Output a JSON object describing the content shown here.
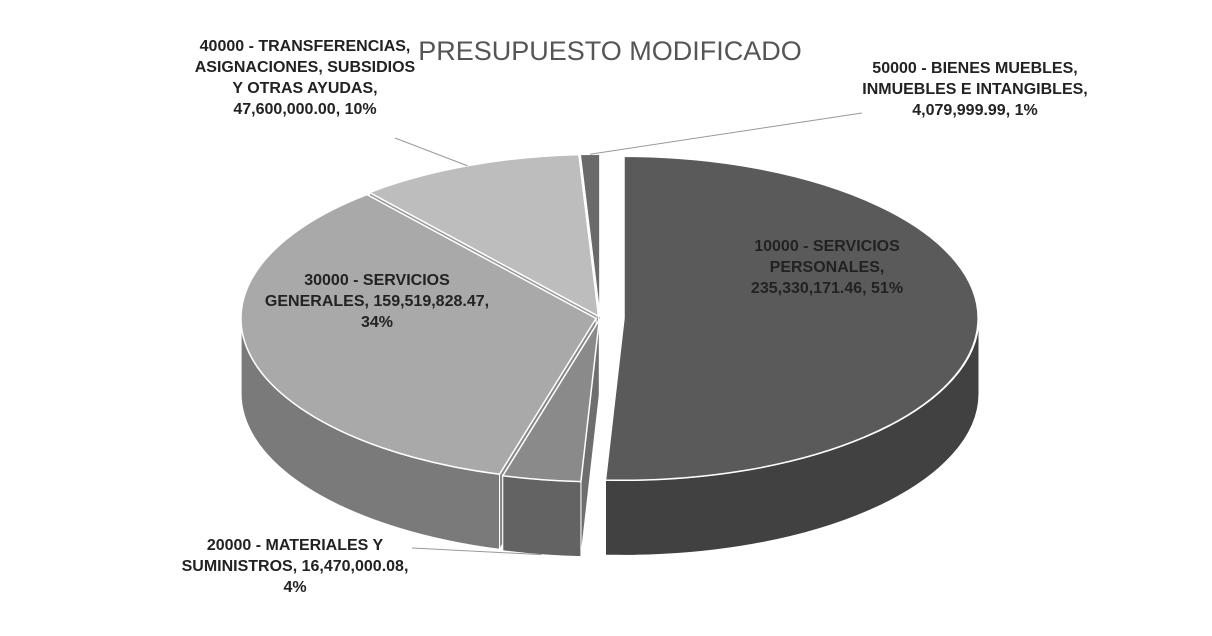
{
  "chart_data": {
    "type": "pie3d",
    "title": "PRESUPUESTO MODIFICADO",
    "categories": [
      "10000 - SERVICIOS PERSONALES",
      "20000 - MATERIALES Y SUMINISTROS",
      "30000 - SERVICIOS GENERALES",
      "40000 - TRANSFERENCIAS, ASIGNACIONES, SUBSIDIOS Y OTRAS AYUDAS",
      "50000 - BIENES MUEBLES, INMUEBLES E INTANGIBLES"
    ],
    "values": [
      235330171.46,
      16470000.08,
      159519828.47,
      47600000.0,
      4079999.99
    ],
    "value_labels": [
      "235,330,171.46",
      "16,470,000.08",
      "159,519,828.47",
      "47,600,000.00",
      "4,079,999.99"
    ],
    "percent_labels": [
      "51%",
      "4%",
      "34%",
      "10%",
      "1%"
    ],
    "colors": [
      "#5a5a5a",
      "#8a8a8a",
      "#a9a9a9",
      "#bdbdbd",
      "#6a6a6a"
    ]
  }
}
